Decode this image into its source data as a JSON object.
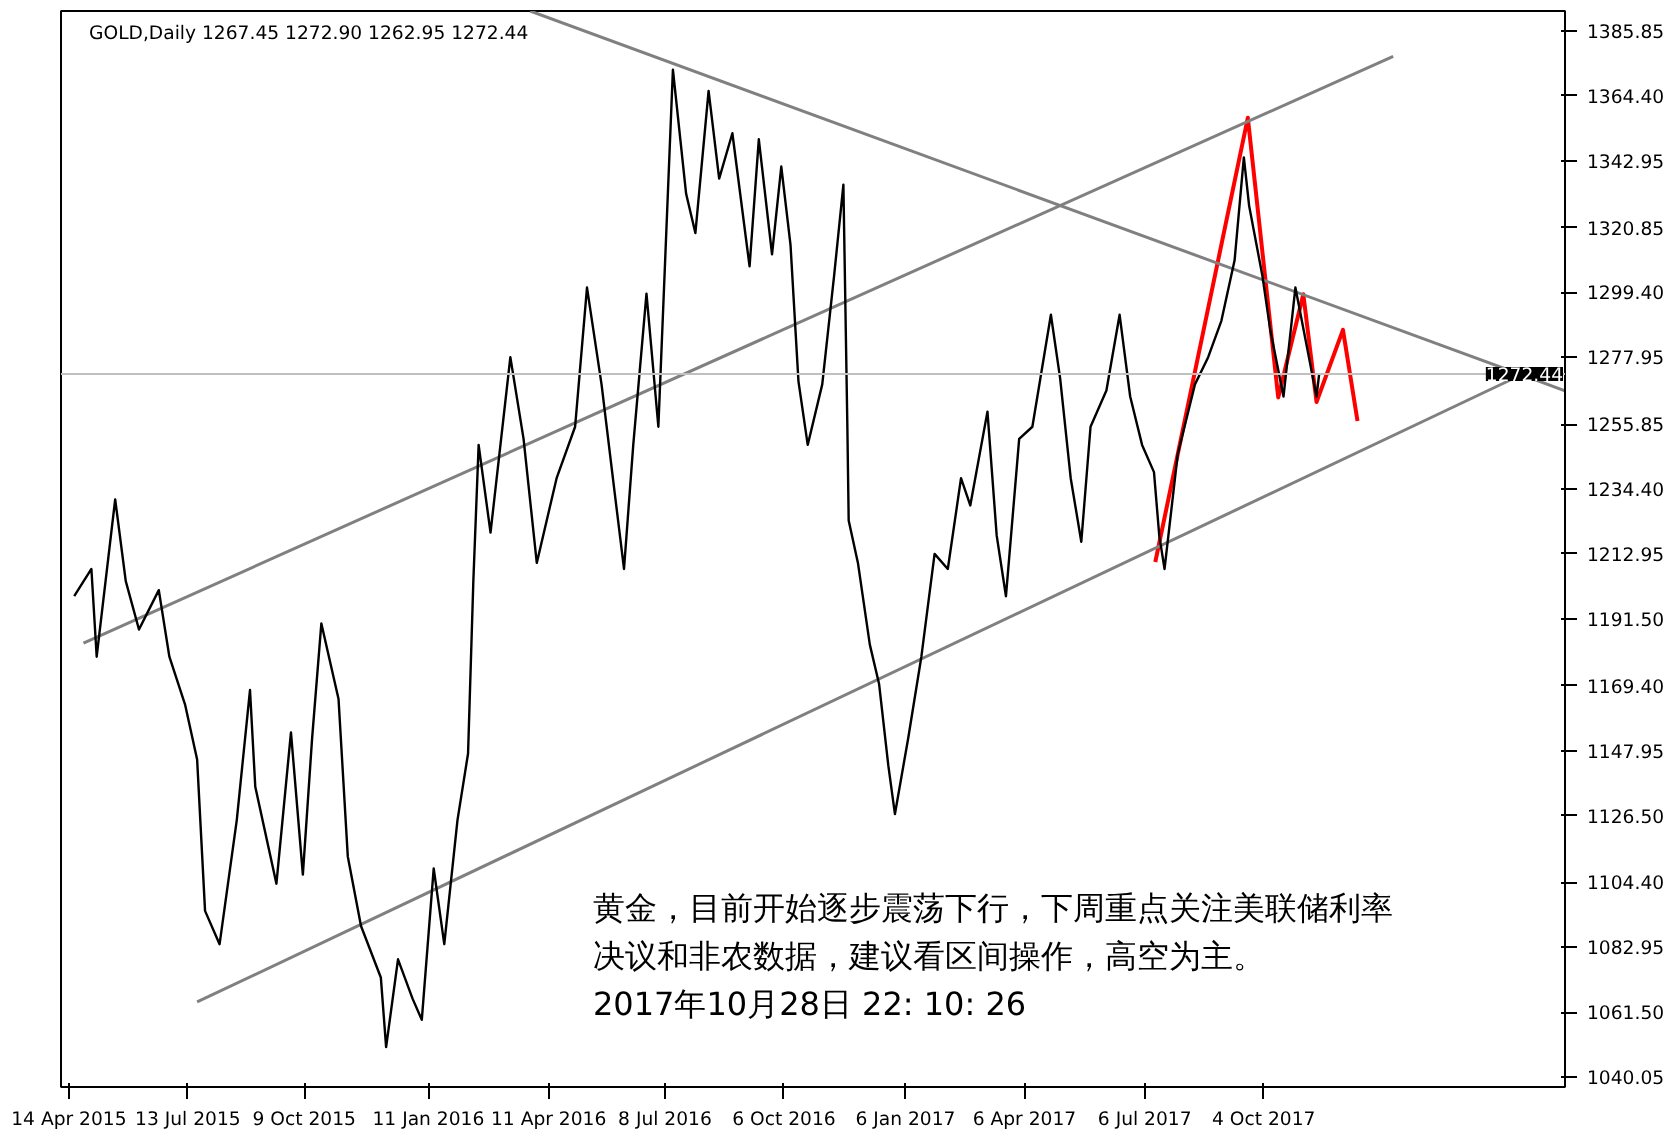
{
  "chart_data": {
    "type": "line",
    "title": "GOLD,Daily  1267.45 1272.90 1262.95 1272.44",
    "xlim": [
      "2015-04-08",
      "2018-05-20"
    ],
    "ylim": [
      1036.8,
      1392.4
    ],
    "xticks": [
      {
        "value": "2015-04-14",
        "label": "14 Apr 2015"
      },
      {
        "value": "2015-07-13",
        "label": "13 Jul 2015"
      },
      {
        "value": "2015-10-09",
        "label": "9 Oct 2015"
      },
      {
        "value": "2016-01-11",
        "label": "11 Jan 2016"
      },
      {
        "value": "2016-04-11",
        "label": "11 Apr 2016"
      },
      {
        "value": "2016-07-08",
        "label": "8 Jul 2016"
      },
      {
        "value": "2016-10-06",
        "label": "6 Oct 2016"
      },
      {
        "value": "2017-01-06",
        "label": "6 Jan 2017"
      },
      {
        "value": "2017-04-06",
        "label": "6 Apr 2017"
      },
      {
        "value": "2017-07-06",
        "label": "6 Jul 2017"
      },
      {
        "value": "2017-10-04",
        "label": "4 Oct 2017"
      }
    ],
    "yticks": [
      1040.05,
      {
        "value": 1061.5,
        "label": "1061.50"
      },
      1082.95,
      {
        "value": 1104.4,
        "label": "1104.40"
      },
      {
        "value": 1126.5,
        "label": "1126.50"
      },
      1147.95,
      {
        "value": 1169.4,
        "label": "1169.40"
      },
      {
        "value": 1191.5,
        "label": "1191.50"
      },
      1212.95,
      {
        "value": 1234.4,
        "label": "1234.40"
      },
      1255.85,
      1277.95,
      {
        "value": 1299.4,
        "label": "1299.40"
      },
      1320.85,
      1342.95,
      {
        "value": 1364.4,
        "label": "1364.40"
      },
      1385.85
    ],
    "grid": false,
    "ref_lines": [
      {
        "axis": "y",
        "value": 1272.44,
        "label": "1272.44",
        "color": "#c0c0c0"
      }
    ],
    "annotations": [
      "黄金，目前开始逐步震荡下行，下周重点关注美联储利率",
      "决议和非农数据，建议看区间操作，高空为主。",
      "2017年10月28日  22: 10: 26"
    ],
    "series": [
      {
        "color": "#000000",
        "x": [
          "2015-04-18",
          "2015-05-01",
          "2015-05-05",
          "2015-05-19",
          "2015-05-27",
          "2015-06-06",
          "2015-06-21",
          "2015-06-29",
          "2015-07-11",
          "2015-07-20",
          "2015-07-26",
          "2015-08-06",
          "2015-08-19",
          "2015-08-29",
          "2015-09-02",
          "2015-09-18",
          "2015-09-29",
          "2015-10-08",
          "2015-10-15",
          "2015-10-22",
          "2015-11-04",
          "2015-11-11",
          "2015-11-21",
          "2015-12-06",
          "2015-12-10",
          "2015-12-19",
          "2015-12-30",
          "2016-01-06",
          "2016-01-15",
          "2016-01-23",
          "2016-02-02",
          "2016-02-10",
          "2016-02-14",
          "2016-02-18",
          "2016-02-27",
          "2016-03-13",
          "2016-03-23",
          "2016-04-02",
          "2016-04-17",
          "2016-05-01",
          "2016-05-10",
          "2016-05-21",
          "2016-05-31",
          "2016-06-07",
          "2016-06-14",
          "2016-06-24",
          "2016-07-03",
          "2016-07-14",
          "2016-07-24",
          "2016-07-31",
          "2016-08-10",
          "2016-08-18",
          "2016-08-28",
          "2016-09-10",
          "2016-09-17",
          "2016-09-27",
          "2016-10-04",
          "2016-10-11",
          "2016-10-17",
          "2016-10-24",
          "2016-11-04",
          "2016-11-13",
          "2016-11-20",
          "2016-11-23",
          "2016-11-24",
          "2016-12-01",
          "2016-12-10",
          "2016-12-17",
          "2016-12-24",
          "2016-12-29",
          "2017-01-08",
          "2017-01-18",
          "2017-01-28",
          "2017-02-07",
          "2017-02-17",
          "2017-02-24",
          "2017-03-09",
          "2017-03-16",
          "2017-03-23",
          "2017-04-02",
          "2017-04-12",
          "2017-04-26",
          "2017-05-03",
          "2017-05-11",
          "2017-05-19",
          "2017-05-26",
          "2017-06-07",
          "2017-06-17",
          "2017-06-25",
          "2017-07-04",
          "2017-07-13",
          "2017-07-17",
          "2017-07-21",
          "2017-07-31",
          "2017-08-13",
          "2017-08-23",
          "2017-09-02",
          "2017-09-12",
          "2017-09-19",
          "2017-09-23",
          "2017-10-03",
          "2017-10-09",
          "2017-10-19",
          "2017-10-28",
          "2017-11-05",
          "2017-11-13",
          "2017-11-15"
        ],
        "values": [
          1199,
          1208,
          1179,
          1231,
          1204,
          1188,
          1201,
          1179,
          1163,
          1145,
          1095,
          1084,
          1125,
          1168,
          1136,
          1104,
          1154,
          1107,
          1152,
          1190,
          1165,
          1113,
          1090,
          1073,
          1050,
          1079,
          1066,
          1059,
          1109,
          1084,
          1125,
          1147,
          1204,
          1249,
          1220,
          1278,
          1251,
          1210,
          1238,
          1255,
          1301,
          1269,
          1233,
          1208,
          1249,
          1299,
          1255,
          1373,
          1332,
          1319,
          1366,
          1337,
          1352,
          1308,
          1350,
          1312,
          1341,
          1315,
          1270,
          1249,
          1269,
          1305,
          1335,
          1255,
          1224,
          1210,
          1183,
          1170,
          1143,
          1127,
          1152,
          1179,
          1213,
          1208,
          1238,
          1229,
          1260,
          1219,
          1199,
          1251,
          1255,
          1292,
          1271,
          1238,
          1217,
          1255,
          1267,
          1292,
          1265,
          1249,
          1240,
          1219,
          1208,
          1246,
          1269,
          1278,
          1290,
          1310,
          1344,
          1328,
          1305,
          1287,
          1265,
          1301,
          1283,
          1265,
          1272.44
        ]
      },
      {
        "color": "#808080",
        "x": [
          "2016-03-28",
          "2018-05-20"
        ],
        "values": [
          1392.4,
          1266.9
        ]
      },
      {
        "color": "#808080",
        "x": [
          "2015-04-25",
          "2018-01-10"
        ],
        "values": [
          1183.5,
          1377.4
        ]
      },
      {
        "color": "#808080",
        "x": [
          "2015-07-20",
          "2018-04-19"
        ],
        "values": [
          1064.9,
          1272.6
        ]
      },
      {
        "color": "#ff0000",
        "x": [
          "2017-07-14",
          "2017-09-22",
          "2017-10-15",
          "2017-11-03",
          "2017-11-13",
          "2017-12-03",
          "2017-12-14"
        ],
        "values": [
          1210.3,
          1357.1,
          1264.7,
          1298.8,
          1263.2,
          1287.0,
          1256.9
        ]
      }
    ]
  }
}
